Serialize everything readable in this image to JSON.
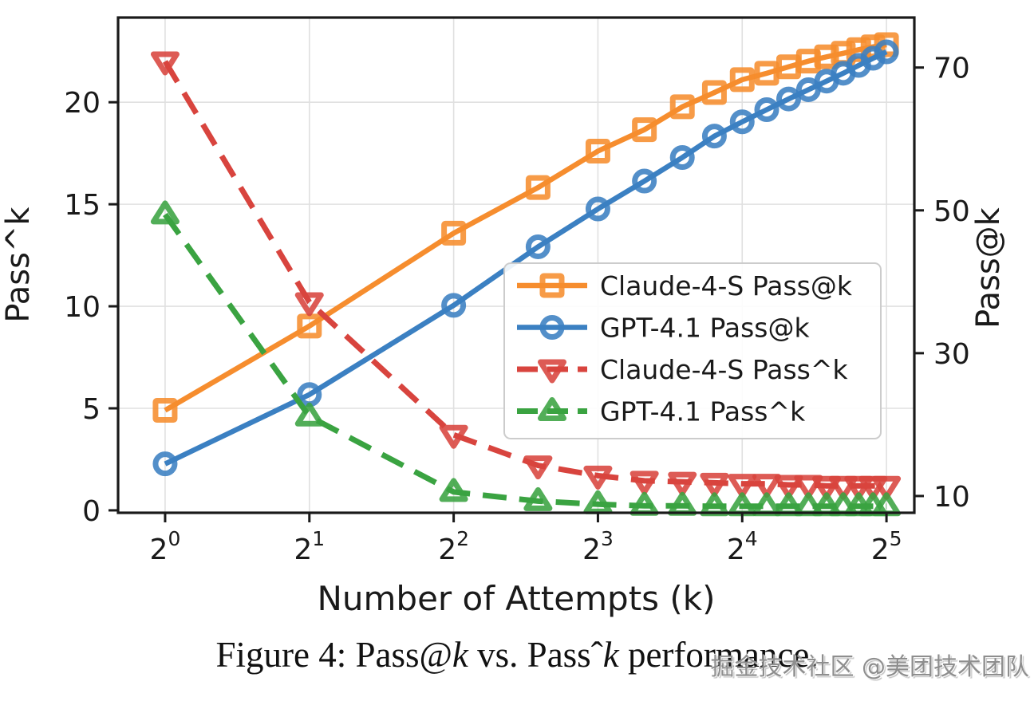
{
  "figure": {
    "caption_parts": [
      {
        "text": "Figure 4: Pass@",
        "italic": false
      },
      {
        "text": "k",
        "italic": true
      },
      {
        "text": " vs. Pass",
        "italic": false
      },
      {
        "text": "ˆ",
        "italic": false
      },
      {
        "text": "k",
        "italic": true
      },
      {
        "text": " performance.",
        "italic": false
      }
    ],
    "watermark": "掘金技术社区 @美团技术团队"
  },
  "chart_data": {
    "type": "line",
    "title": "",
    "xlabel": "Number of Attempts (k)",
    "x_scale": "log2",
    "x_tick_labels": [
      "2^0",
      "2^1",
      "2^2",
      "2^3",
      "2^4",
      "2^5"
    ],
    "x_tick_log2": [
      0,
      1,
      2,
      3,
      4,
      5
    ],
    "x_range_log2": [
      -0.326,
      5.193
    ],
    "left_axis": {
      "label": "Pass^k",
      "ticks": [
        0,
        5,
        10,
        15,
        20
      ],
      "range": [
        -0.12,
        24.15
      ]
    },
    "right_axis": {
      "label": "Pass@k",
      "ticks": [
        10,
        30,
        50,
        70
      ],
      "range": [
        7.65,
        77.0
      ]
    },
    "grid": true,
    "grid_color": "#e0e0e0",
    "legend_position": "center-right",
    "k": [
      1,
      2,
      4,
      6,
      8,
      10,
      12,
      14,
      16,
      18,
      20,
      22,
      24,
      26,
      28,
      30,
      32
    ],
    "series": [
      {
        "name": "Claude-4-S Pass@k",
        "axis": "right",
        "color": "#f68d2e",
        "marker": "square",
        "line": "solid",
        "values": [
          22.0,
          33.8,
          46.8,
          53.2,
          58.3,
          61.3,
          64.5,
          66.5,
          68.3,
          69.2,
          70.1,
          70.9,
          71.5,
          72.0,
          72.5,
          72.9,
          73.2
        ]
      },
      {
        "name": "GPT-4.1 Pass@k",
        "axis": "right",
        "color": "#3b80c2",
        "marker": "circle",
        "line": "solid",
        "values": [
          14.5,
          24.2,
          36.7,
          44.9,
          50.2,
          54.1,
          57.4,
          60.4,
          62.4,
          64.1,
          65.6,
          66.9,
          68.1,
          69.2,
          70.3,
          71.3,
          72.2
        ]
      },
      {
        "name": "Claude-4-S Pass^k",
        "axis": "left",
        "color": "#d8443e",
        "marker": "triangle-down",
        "line": "dashed",
        "values": [
          22.0,
          10.2,
          3.7,
          2.2,
          1.7,
          1.45,
          1.4,
          1.35,
          1.3,
          1.3,
          1.25,
          1.25,
          1.2,
          1.2,
          1.2,
          1.2,
          1.2
        ]
      },
      {
        "name": "GPT-4.1 Pass^k",
        "axis": "left",
        "color": "#3aa341",
        "marker": "triangle-up",
        "line": "dashed",
        "values": [
          14.5,
          4.6,
          0.9,
          0.45,
          0.3,
          0.22,
          0.22,
          0.2,
          0.2,
          0.2,
          0.2,
          0.2,
          0.2,
          0.2,
          0.2,
          0.2,
          0.2
        ]
      }
    ]
  }
}
